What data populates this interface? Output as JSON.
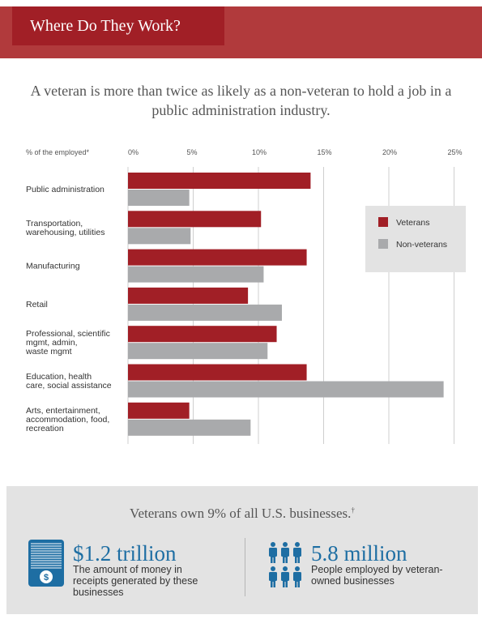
{
  "header": {
    "title": "Where Do They Work?"
  },
  "subtitle": "A veteran is more than twice as likely as a non-veteran to hold a job in a public administration industry.",
  "chart_data": {
    "type": "bar",
    "orientation": "horizontal",
    "ylabel": "% of the employed*",
    "xlim": [
      0,
      25
    ],
    "ticks": [
      "0%",
      "5%",
      "10%",
      "15%",
      "20%",
      "25%"
    ],
    "categories": [
      [
        "Public administration"
      ],
      [
        "Transportation,",
        "warehousing, utilities"
      ],
      [
        "Manufacturing"
      ],
      [
        "Retail"
      ],
      [
        "Professional, scientific",
        "mgmt, admin,",
        "waste mgmt"
      ],
      [
        "Education, health",
        "care, social assistance"
      ],
      [
        "Arts, entertainment,",
        "accommodation, food,",
        "recreation"
      ]
    ],
    "series": [
      {
        "name": "Veterans",
        "color": "#a11f26",
        "values": [
          14.0,
          10.2,
          13.7,
          9.2,
          11.4,
          13.7,
          4.7
        ]
      },
      {
        "name": "Non-veterans",
        "color": "#a9aaac",
        "values": [
          4.7,
          4.8,
          10.4,
          11.8,
          10.7,
          24.2,
          9.4
        ]
      }
    ],
    "grid": true,
    "legend_position": "right"
  },
  "stats": {
    "headline": "Veterans own 9% of all U.S. businesses.",
    "headline_mark": "†",
    "money": {
      "value": "$1.2 trillion",
      "desc": "The amount of money in receipts generated by these businesses",
      "icon": "money-stack-icon",
      "badge": "$"
    },
    "people": {
      "value": "5.8 million",
      "desc": "People employed by veteran-owned businesses",
      "icon": "people-icon"
    },
    "accent_color": "#1e6ea3"
  }
}
